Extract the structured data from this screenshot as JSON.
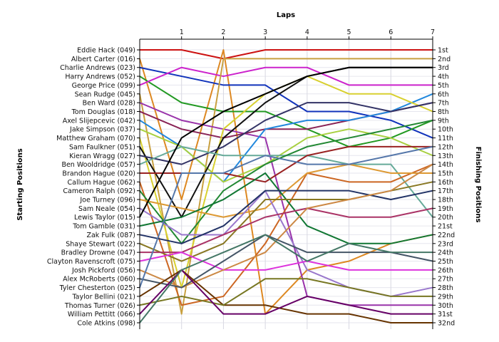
{
  "chart_data": {
    "type": "line",
    "title": "",
    "top_axis_label": "Laps",
    "left_axis_label": "Starting Positions",
    "right_axis_label": "Finishing Positions",
    "laps": [
      "1",
      "2",
      "3",
      "4",
      "5",
      "6",
      "7"
    ],
    "ylim": [
      1,
      32
    ],
    "y_inverted": true,
    "grid": true,
    "finishing_labels": [
      "1st",
      "2nd",
      "3rd",
      "4th",
      "5th",
      "6th",
      "7th",
      "8th",
      "9th",
      "10th",
      "11th",
      "12th",
      "13th",
      "14th",
      "15th",
      "16th",
      "17th",
      "18th",
      "19th",
      "20th",
      "21st",
      "22nd",
      "23rd",
      "24th",
      "25th",
      "26th",
      "27th",
      "28th",
      "29th",
      "30th",
      "31st",
      "32nd"
    ],
    "series": [
      {
        "name": "Eddie Hack (049)",
        "color": "#cc1111",
        "positions": [
          1,
          1,
          2,
          1,
          1,
          1,
          1,
          1
        ]
      },
      {
        "name": "Albert Carter (016)",
        "color": "#dd8822",
        "positions": [
          2,
          18,
          1,
          31,
          26,
          25,
          23,
          22
        ]
      },
      {
        "name": "Charlie Andrews (023)",
        "color": "#1133bb",
        "positions": [
          3,
          4,
          5,
          5,
          8,
          8,
          9,
          11
        ]
      },
      {
        "name": "Harry Andrews (052)",
        "color": "#229922",
        "positions": [
          4,
          7,
          8,
          8,
          10,
          12,
          11,
          9
        ]
      },
      {
        "name": "George Price (099)",
        "color": "#cc22cc",
        "positions": [
          5,
          3,
          4,
          3,
          3,
          5,
          5,
          5
        ]
      },
      {
        "name": "Sean Rudge (045)",
        "color": "#c8a040",
        "positions": [
          6,
          31,
          2,
          2,
          2,
          2,
          2,
          2
        ]
      },
      {
        "name": "Ben Ward (028)",
        "color": "#9933aa",
        "positions": [
          7,
          9,
          10,
          11,
          29,
          30,
          30,
          30
        ]
      },
      {
        "name": "Tom Douglas (018)",
        "color": "#882255",
        "positions": [
          8,
          10,
          11,
          10,
          10,
          9,
          8,
          7
        ]
      },
      {
        "name": "Axel Slijepcevic (042)",
        "color": "#2288dd",
        "positions": [
          9,
          12,
          16,
          10,
          9,
          9,
          8,
          6
        ]
      },
      {
        "name": "Jake Simpson (037)",
        "color": "#a8d040",
        "positions": [
          10,
          12,
          16,
          14,
          11,
          10,
          11,
          13
        ]
      },
      {
        "name": "Matthew Graham (070)",
        "color": "#d8d030",
        "positions": [
          11,
          28,
          10,
          6,
          4,
          6,
          6,
          8
        ]
      },
      {
        "name": "Sam Faulkner (051)",
        "color": "#111111",
        "positions": [
          12,
          20,
          11,
          7,
          4,
          3,
          3,
          3
        ]
      },
      {
        "name": "Kieran Wragg (027)",
        "color": "#333366",
        "positions": [
          13,
          14,
          12,
          9,
          7,
          7,
          8,
          7
        ]
      },
      {
        "name": "Ben Wooldridge (057)",
        "color": "#66aa99",
        "positions": [
          14,
          12,
          13,
          13,
          13,
          14,
          14,
          20
        ]
      },
      {
        "name": "Brandon Hague (020)",
        "color": "#992222",
        "positions": [
          15,
          15,
          15,
          16,
          13,
          12,
          12,
          12
        ]
      },
      {
        "name": "Callum Hague (062)",
        "color": "#cc6622",
        "positions": [
          16,
          30,
          29,
          23,
          15,
          16,
          16,
          14
        ]
      },
      {
        "name": "Cameron Ralph (092)",
        "color": "#228833",
        "positions": [
          17,
          23,
          17,
          14,
          12,
          11,
          10,
          9
        ]
      },
      {
        "name": "Joe Turney (096)",
        "color": "#dd9933",
        "positions": [
          18,
          19,
          20,
          19,
          15,
          14,
          15,
          15
        ]
      },
      {
        "name": "Sam Neale (054)",
        "color": "#9977cc",
        "positions": [
          19,
          22,
          22,
          17,
          26,
          28,
          29,
          28
        ]
      },
      {
        "name": "Lewis Taylor (015)",
        "color": "#000000",
        "positions": [
          20,
          11,
          8,
          6,
          4,
          3,
          3,
          3
        ]
      },
      {
        "name": "Tom Gamble (031)",
        "color": "#117733",
        "positions": [
          21,
          20,
          18,
          15,
          21,
          23,
          23,
          22
        ]
      },
      {
        "name": "Zak Fulk (087)",
        "color": "#223366",
        "positions": [
          22,
          23,
          21,
          17,
          17,
          17,
          18,
          17
        ]
      },
      {
        "name": "Shaye Stewart (022)",
        "color": "#887722",
        "positions": [
          23,
          25,
          23,
          18,
          18,
          18,
          17,
          16
        ]
      },
      {
        "name": "Bradley Drowne (047)",
        "color": "#aa3366",
        "positions": [
          24,
          24,
          22,
          20,
          19,
          20,
          20,
          19
        ]
      },
      {
        "name": "Clayton Ravenscroft (075)",
        "color": "#dd33dd",
        "positions": [
          25,
          24,
          26,
          26,
          25,
          26,
          26,
          26
        ]
      },
      {
        "name": "Josh Pickford (056)",
        "color": "#cc8844",
        "positions": [
          26,
          28,
          26,
          24,
          19,
          18,
          17,
          14
        ]
      },
      {
        "name": "Alex McRoberts (060)",
        "color": "#445566",
        "positions": [
          27,
          28,
          25,
          22,
          24,
          24,
          24,
          25
        ]
      },
      {
        "name": "Tyler Chesterton (025)",
        "color": "#5577aa",
        "positions": [
          28,
          15,
          15,
          13,
          14,
          14,
          13,
          12
        ]
      },
      {
        "name": "Taylor Bellini (021)",
        "color": "#663300",
        "positions": [
          29,
          26,
          30,
          30,
          31,
          31,
          32,
          32
        ]
      },
      {
        "name": "Thomas Turner (026)",
        "color": "#777722",
        "positions": [
          30,
          29,
          30,
          27,
          27,
          28,
          29,
          29
        ]
      },
      {
        "name": "William Pettitt (066)",
        "color": "#660066",
        "positions": [
          31,
          26,
          31,
          31,
          29,
          30,
          31,
          31
        ]
      },
      {
        "name": "Cole Atkins (098)",
        "color": "#447766",
        "positions": [
          32,
          26,
          24,
          22,
          25,
          23,
          24,
          24
        ]
      }
    ]
  }
}
